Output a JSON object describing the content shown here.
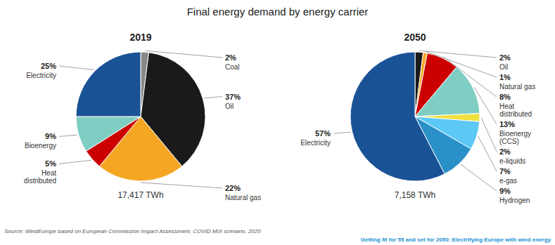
{
  "title": "Final energy demand by energy carrier",
  "annotations": [
    "Source: WindEurope based on European Commission Impact Assessment, COVID MIX scenario, 2020",
    "Getting fit for 55 and set for 2050: Electrifying Europe with wind energy"
  ],
  "chart_data": [
    {
      "type": "pie",
      "title": "2019",
      "categories": [
        "Coal",
        "Oil",
        "Natural gas",
        "Heat\ndistributed",
        "Bioenergy",
        "Electricity"
      ],
      "values": [
        2,
        37,
        22,
        5,
        9,
        25
      ],
      "value_labels": [
        "2%",
        "37%",
        "22%",
        "5%",
        "9%",
        "25%"
      ],
      "colors": [
        "#888888",
        "#1a1a1a",
        "#f5a623",
        "#cc0000",
        "#7ecec4",
        "#1a5296"
      ],
      "data_labels": true,
      "annotations": [
        "17,417 TWh"
      ]
    },
    {
      "type": "pie",
      "title": "2050",
      "categories": [
        "Oil",
        "Natural gas",
        "Heat\ndistributed",
        "Bioenergy\n(CCS)",
        "e-liquids",
        "e-gas",
        "Hydrogen",
        "Electricity"
      ],
      "values": [
        2,
        1,
        8,
        13,
        2,
        7,
        9,
        57
      ],
      "value_labels": [
        "2%",
        "1%",
        "8%",
        "13%",
        "2%",
        "7%",
        "9%",
        "57%"
      ],
      "colors": [
        "#1a1a1a",
        "#f5a623",
        "#cc0000",
        "#7ecec4",
        "#f0e040",
        "#5bc8f5",
        "#2990c8",
        "#1a5296"
      ],
      "data_labels": true,
      "annotations": [
        "7,158 TWh"
      ]
    }
  ]
}
